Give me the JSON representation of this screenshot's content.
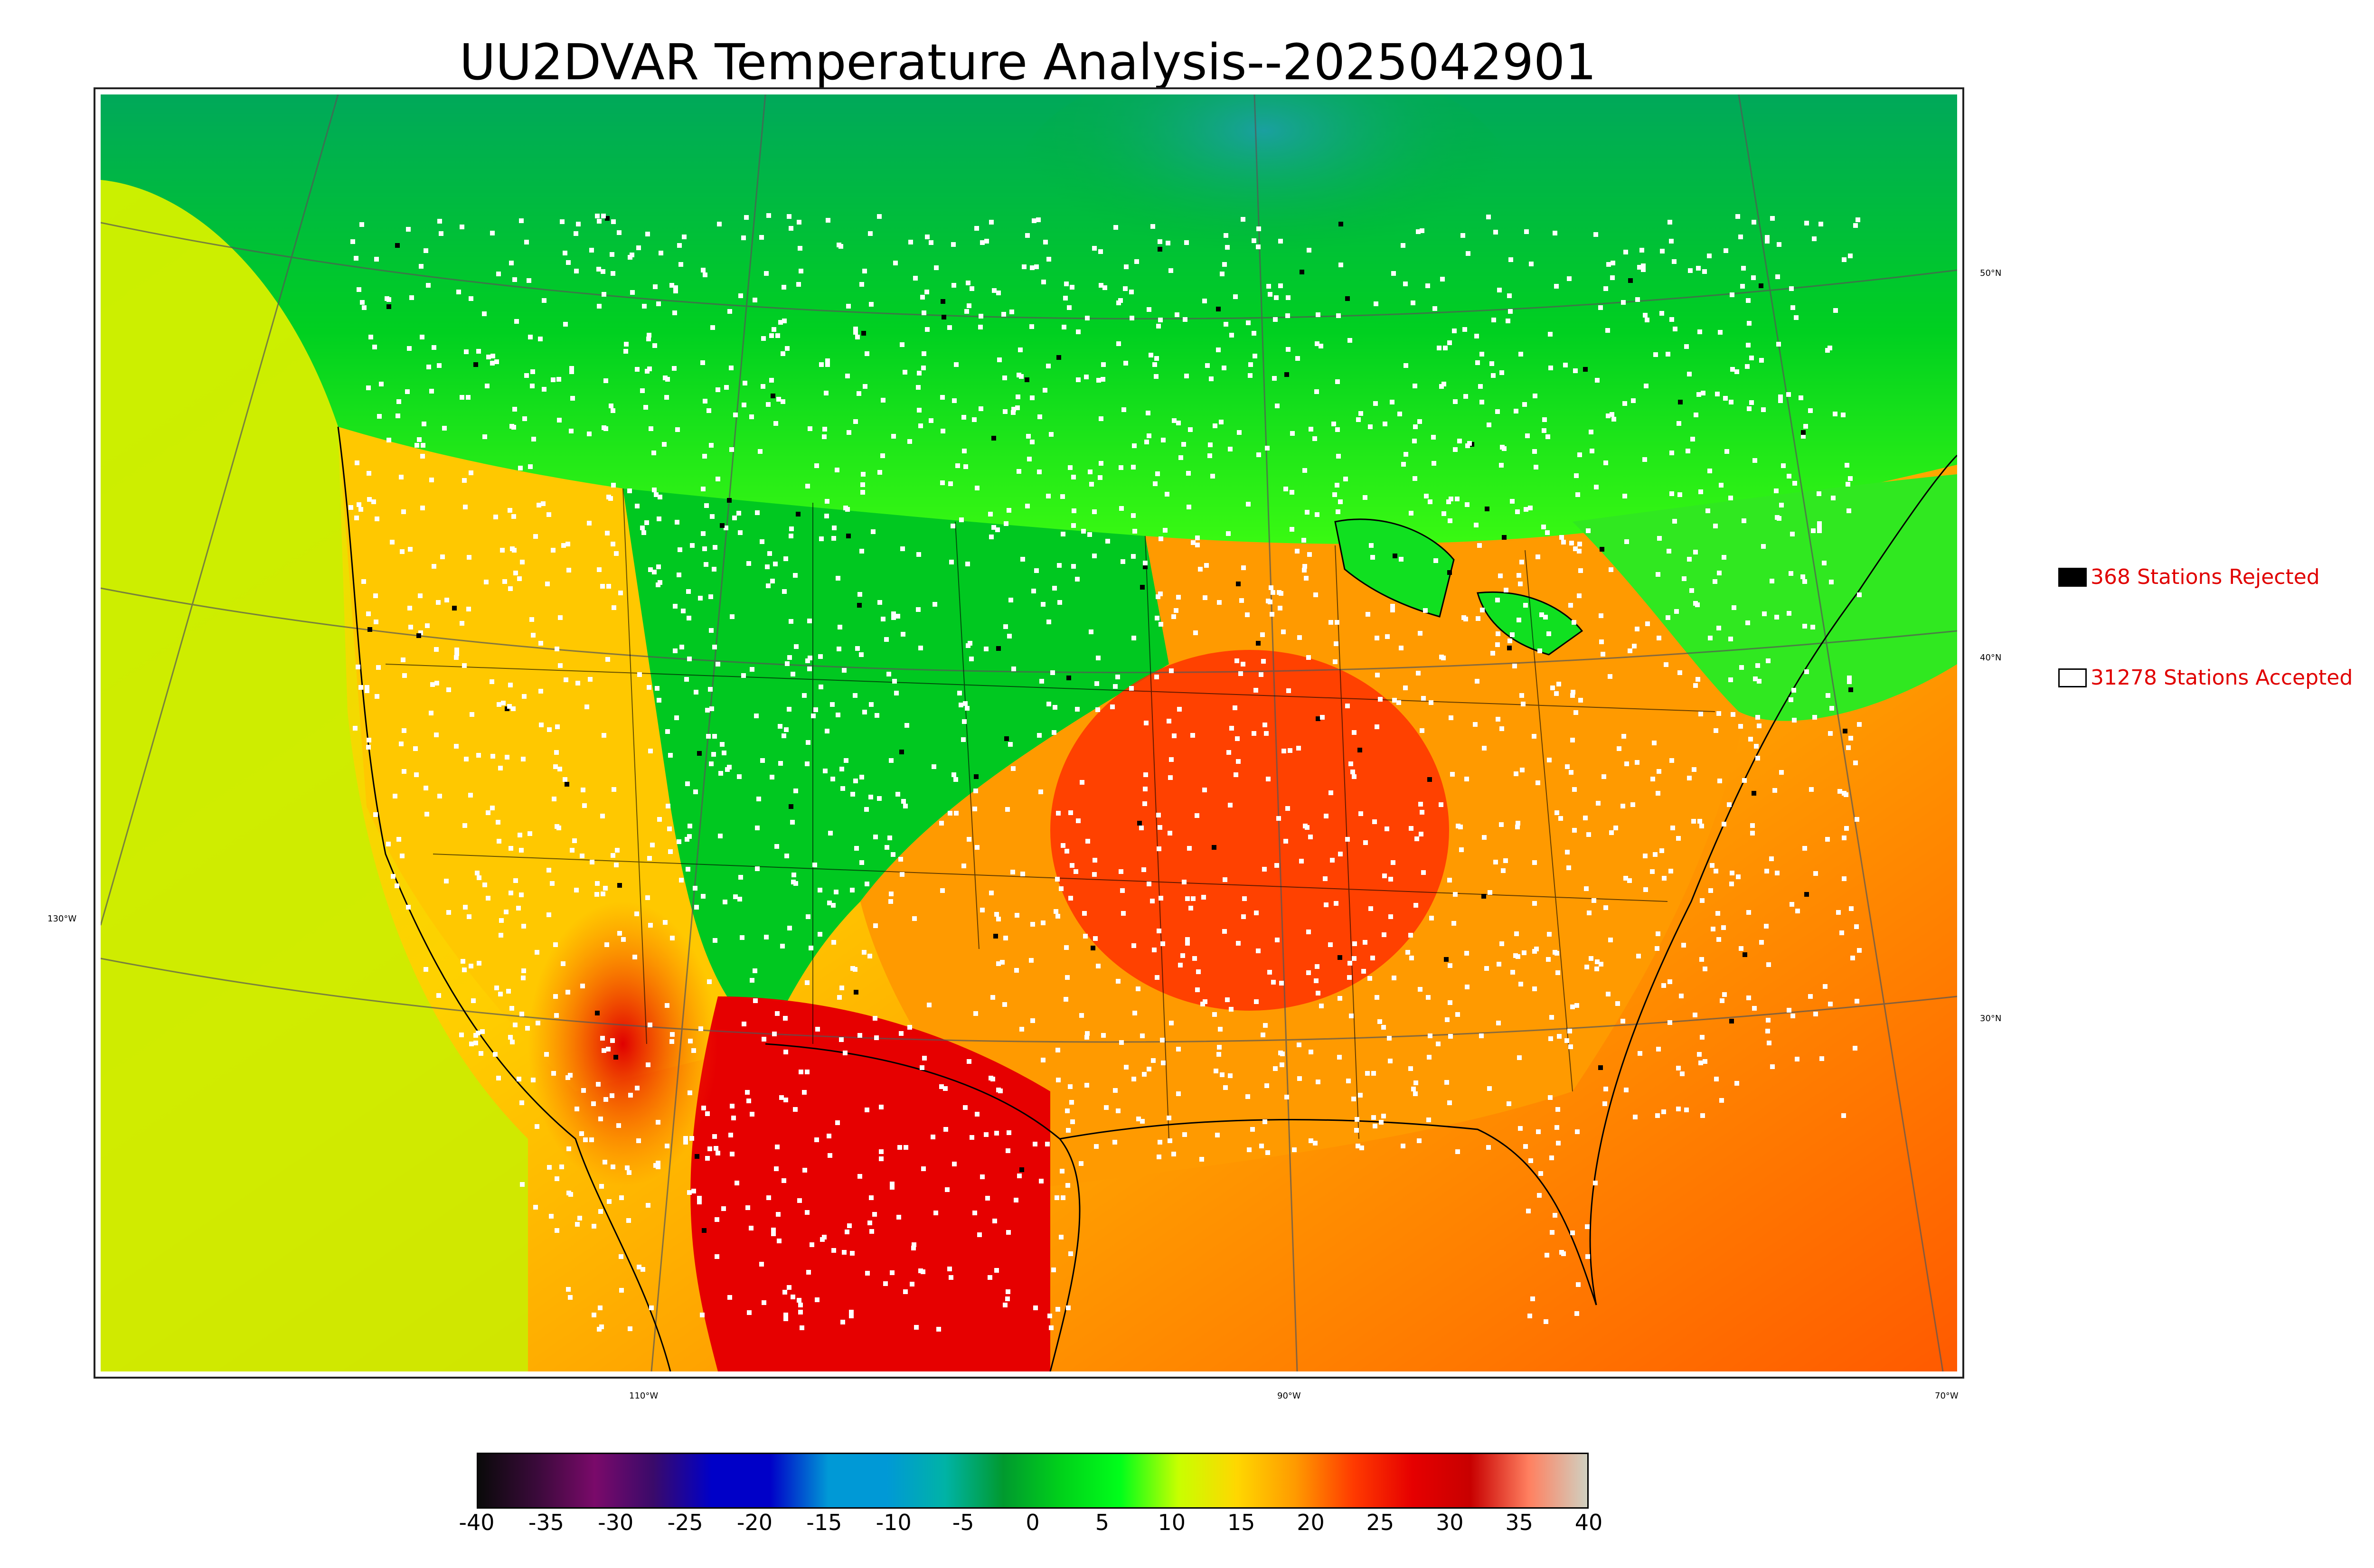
{
  "title": "UU2DVAR Temperature Analysis--2025042901",
  "legend": {
    "rejected": {
      "label": "368 Stations Rejected",
      "color": "#000000"
    },
    "accepted": {
      "label": "31278 Stations Accepted",
      "color": "#ffffff"
    }
  },
  "lat_labels": [
    "50°N",
    "40°N",
    "30°N"
  ],
  "lon_labels": [
    "130°W",
    "110°W",
    "90°W",
    "70°W"
  ],
  "colorbar": {
    "ticks": [
      "-40",
      "-35",
      "-30",
      "-25",
      "-20",
      "-15",
      "-10",
      "-5",
      "0",
      "5",
      "10",
      "15",
      "20",
      "25",
      "30",
      "35",
      "40"
    ],
    "colors": [
      "#0a0a0a",
      "#3a0a3a",
      "#7a0a6a",
      "#3a0a6a",
      "#0000c8",
      "#0000c8",
      "#0099d6",
      "#0099d6",
      "#00b3a6",
      "#009a2e",
      "#00d21a",
      "#00ff1a",
      "#c8ff00",
      "#ffd700",
      "#ff9a00",
      "#ff3a00",
      "#e60000",
      "#c80000",
      "#ff8060",
      "#d0d0c0"
    ]
  },
  "colors": {
    "land_warm": "#ff3a00",
    "land_mid": "#ffc800",
    "land_cool": "#00c820",
    "ocean_west": "#c8f000",
    "ocean_south": "#ff9000",
    "canada_north": "#00c030"
  }
}
